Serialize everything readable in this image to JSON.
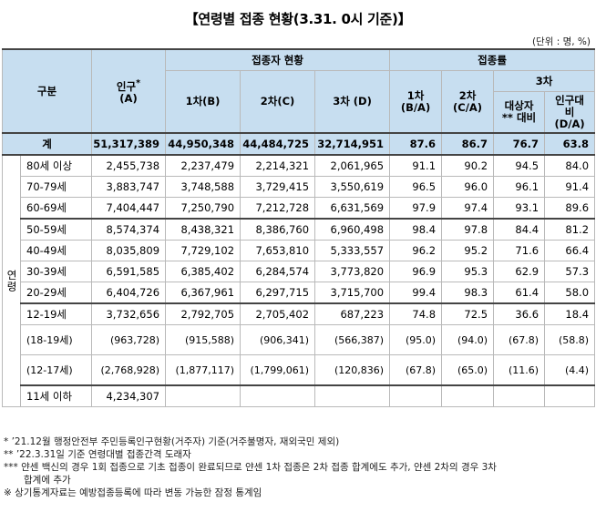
{
  "title": "【연령별 접종 현황(3.31. 0시 기준)】",
  "unit": "(단위 : 명, %)",
  "headers": {
    "category": "구분",
    "population": "인구",
    "population_mark": "*",
    "population_sub": "(A)",
    "vaccinated_group": "접종자 현황",
    "rate_group": "접종률",
    "dose1": "1차(B)",
    "dose2": "2차(C)",
    "dose3": "3차 (D)",
    "rate1_a": "1차",
    "rate1_b": "(B/A)",
    "rate2_a": "2차",
    "rate2_b": "(C/A)",
    "rate3": "3차",
    "rate3_target_a": "대상자",
    "rate3_target_b": "** 대비",
    "rate3_pop_a": "인구대",
    "rate3_pop_b": "비",
    "rate3_pop_c": "(D/A)"
  },
  "total": {
    "label": "계",
    "population": "51,317,389",
    "dose1": "44,950,348",
    "dose2": "44,484,725",
    "dose3": "32,714,951",
    "rate1": "87.6",
    "rate2": "86.7",
    "rate3_target": "76.7",
    "rate3_pop": "63.8"
  },
  "age_label": "연령",
  "rows": [
    {
      "age": "80세 이상",
      "population": "2,455,738",
      "dose1": "2,237,479",
      "dose2": "2,214,321",
      "dose3": "2,061,965",
      "rate1": "91.1",
      "rate2": "90.2",
      "rate3_target": "94.5",
      "rate3_pop": "84.0"
    },
    {
      "age": "70-79세",
      "population": "3,883,747",
      "dose1": "3,748,588",
      "dose2": "3,729,415",
      "dose3": "3,550,619",
      "rate1": "96.5",
      "rate2": "96.0",
      "rate3_target": "96.1",
      "rate3_pop": "91.4"
    },
    {
      "age": "60-69세",
      "population": "7,404,447",
      "dose1": "7,250,790",
      "dose2": "7,212,728",
      "dose3": "6,631,569",
      "rate1": "97.9",
      "rate2": "97.4",
      "rate3_target": "93.1",
      "rate3_pop": "89.6"
    },
    {
      "age": "50-59세",
      "population": "8,574,374",
      "dose1": "8,438,321",
      "dose2": "8,386,760",
      "dose3": "6,960,498",
      "rate1": "98.4",
      "rate2": "97.8",
      "rate3_target": "84.4",
      "rate3_pop": "81.2"
    },
    {
      "age": "40-49세",
      "population": "8,035,809",
      "dose1": "7,729,102",
      "dose2": "7,653,810",
      "dose3": "5,333,557",
      "rate1": "96.2",
      "rate2": "95.2",
      "rate3_target": "71.6",
      "rate3_pop": "66.4"
    },
    {
      "age": "30-39세",
      "population": "6,591,585",
      "dose1": "6,385,402",
      "dose2": "6,284,574",
      "dose3": "3,773,820",
      "rate1": "96.9",
      "rate2": "95.3",
      "rate3_target": "62.9",
      "rate3_pop": "57.3"
    },
    {
      "age": "20-29세",
      "population": "6,404,726",
      "dose1": "6,367,961",
      "dose2": "6,297,715",
      "dose3": "3,715,700",
      "rate1": "99.4",
      "rate2": "98.3",
      "rate3_target": "61.4",
      "rate3_pop": "58.0"
    },
    {
      "age": "12-19세",
      "population": "3,732,656",
      "dose1": "2,792,705",
      "dose2": "2,705,402",
      "dose3": "687,223",
      "rate1": "74.8",
      "rate2": "72.5",
      "rate3_target": "36.6",
      "rate3_pop": "18.4"
    }
  ],
  "subrows": [
    {
      "age": "(18-19세)",
      "population": "(963,728)",
      "dose1": "(915,588)",
      "dose2": "(906,341)",
      "dose3": "(566,387)",
      "rate1": "(95.0)",
      "rate2": "(94.0)",
      "rate3_target": "(67.8)",
      "rate3_pop": "(58.8)"
    },
    {
      "age": "(12-17세)",
      "population": "(2,768,928)",
      "dose1": "(1,877,117)",
      "dose2": "(1,799,061)",
      "dose3": "(120,836)",
      "rate1": "(67.8)",
      "rate2": "(65.0)",
      "rate3_target": "(11.6)",
      "rate3_pop": "(4.4)"
    }
  ],
  "last_row": {
    "age": "11세 이하",
    "population": "4,234,307"
  },
  "notes": [
    "* ’21.12월 행정안전부 주민등록인구현황(거주자) 기준(거주불명자, 재외국민 제외)",
    "** ’22.3.31일 기준 연령대별 접종간격 도래자",
    "*** 얀센 백신의 경우 1회 접종으로 기초 접종이 완료되므로 얀센 1차 접종은 2차 접종 합계에도 추가, 얀센 2차의 경우 3차",
    "합계에 추가",
    "※ 상기통계자료는 예방접종등록에 따라 변동 가능한 잠정 통계임"
  ]
}
